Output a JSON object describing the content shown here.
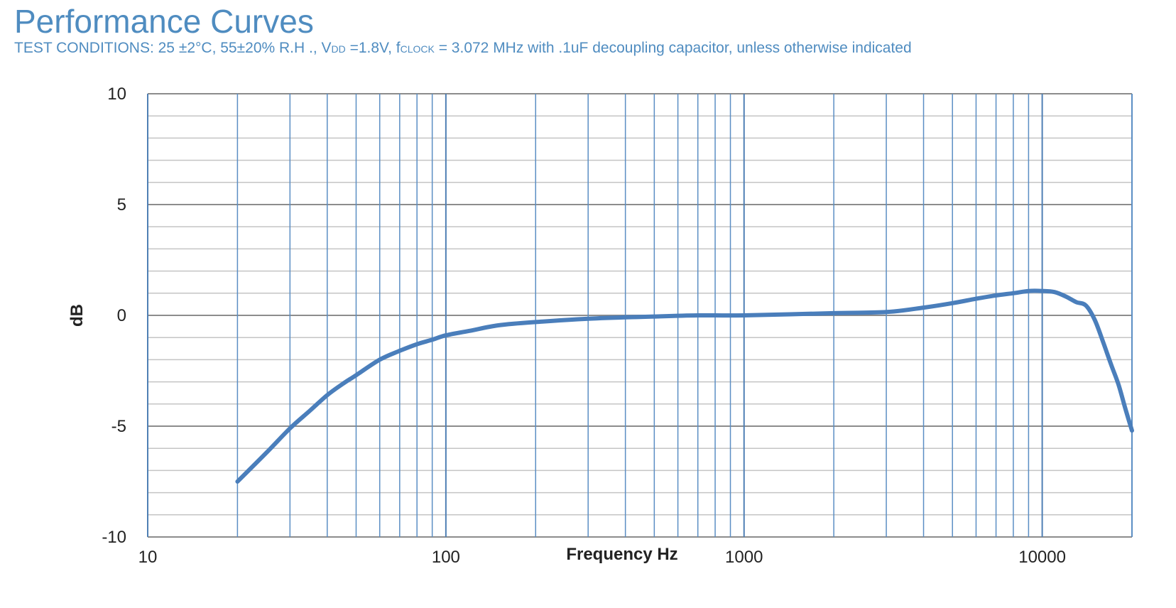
{
  "header": {
    "title": "Performance Curves",
    "conditions": {
      "part1": "TEST CONDITIONS: 25 ±2°C, 55±20% R.H ., V",
      "sub1": "DD",
      "part2": " =1.8V, f",
      "sub2": "CLOCK",
      "part3": " = 3.072 MHz with .1uF decoupling capacitor, unless otherwise indicated"
    }
  },
  "colors": {
    "accent": "#4f8cc0",
    "curve": "#4a7ebb",
    "vgrid": "#5b8ec4",
    "hgrid": "#8c8c8c",
    "hgrid_minor": "#c4c4c4"
  },
  "chart_data": {
    "type": "line",
    "xscale": "log",
    "xlim": [
      10,
      20000
    ],
    "ylim": [
      -10,
      10
    ],
    "xlabel": "Frequency Hz",
    "ylabel": "dB",
    "grid": true,
    "x_ticks": [
      10,
      100,
      1000,
      10000
    ],
    "x_tick_labels": [
      "10",
      "100",
      "1000",
      "10000"
    ],
    "y_ticks": [
      10,
      5,
      0,
      -5,
      -10
    ],
    "y_tick_labels": [
      "10",
      "5",
      "0",
      "-5",
      "-10"
    ],
    "y_minor_step": 1,
    "series": [
      {
        "x": [
          20,
          25,
          30,
          35,
          40,
          45,
          50,
          60,
          70,
          80,
          90,
          100,
          120,
          150,
          200,
          300,
          500,
          700,
          1000,
          2000,
          3000,
          4000,
          5000,
          6000,
          7000,
          8000,
          9000,
          10000,
          11000,
          12000,
          13000,
          14000,
          15000,
          16000,
          17000,
          18000,
          19000,
          20000
        ],
        "y": [
          -7.5,
          -6.2,
          -5.1,
          -4.3,
          -3.6,
          -3.1,
          -2.7,
          -2.0,
          -1.6,
          -1.3,
          -1.1,
          -0.9,
          -0.7,
          -0.45,
          -0.3,
          -0.15,
          -0.05,
          0.0,
          0.0,
          0.1,
          0.15,
          0.35,
          0.55,
          0.75,
          0.9,
          1.0,
          1.1,
          1.1,
          1.05,
          0.85,
          0.6,
          0.45,
          -0.2,
          -1.2,
          -2.2,
          -3.1,
          -4.2,
          -5.2
        ]
      }
    ]
  }
}
